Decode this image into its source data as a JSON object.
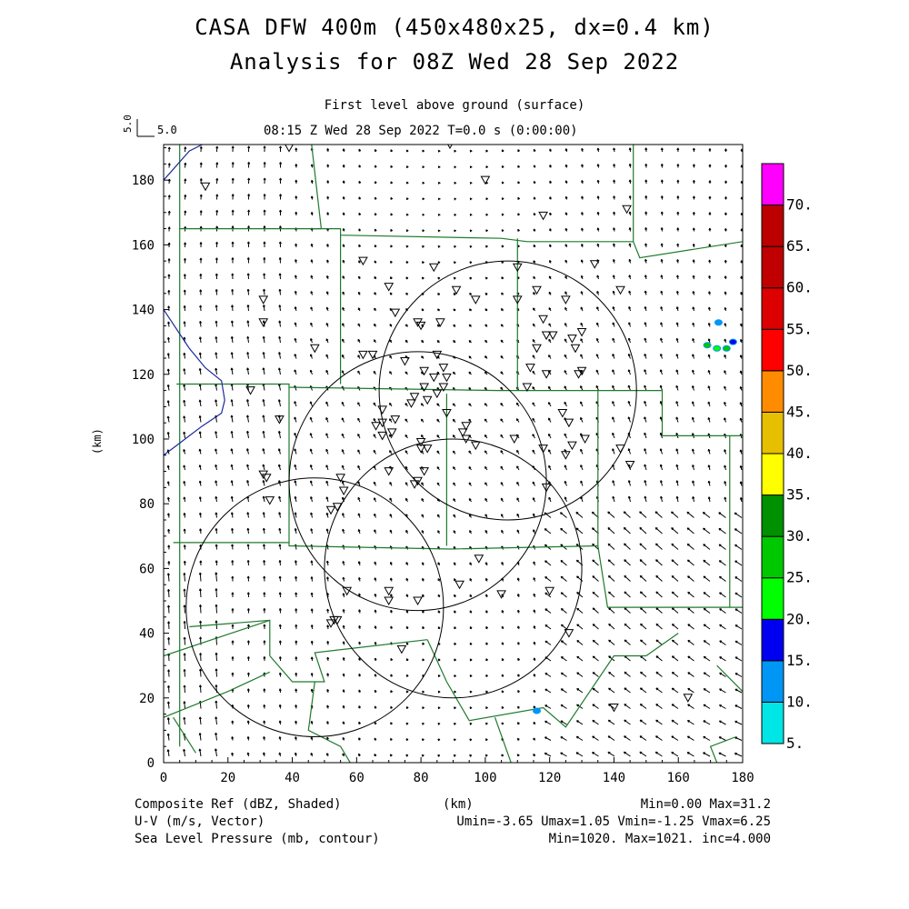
{
  "chart_data": {
    "type": "heatmap",
    "title": "CASA DFW 400m (450x480x25, dx=0.4 km)",
    "title2": "Analysis for 08Z Wed 28 Sep 2022",
    "subtitle": "First level above ground (surface)",
    "time_label": "08:15 Z Wed 28 Sep 2022    T=0.0 s (0:00:00)",
    "vector_scale": "5.0",
    "xlabel": "(km)",
    "ylabel": "(km)",
    "xlim": [
      0,
      180
    ],
    "ylim": [
      0,
      191
    ],
    "xticks": [
      "0",
      "20",
      "40",
      "60",
      "80",
      "100",
      "120",
      "140",
      "160",
      "180"
    ],
    "yticks": [
      "0",
      "20",
      "40",
      "60",
      "80",
      "100",
      "120",
      "140",
      "160",
      "180"
    ],
    "colorbar": {
      "labels": [
        "5.",
        "10.",
        "15.",
        "20.",
        "25.",
        "30.",
        "35.",
        "40.",
        "45.",
        "50.",
        "55.",
        "60.",
        "65.",
        "70."
      ],
      "colors": [
        "#00e5e5",
        "#0096f5",
        "#0000f0",
        "#00ff00",
        "#00c800",
        "#009000",
        "#ffff00",
        "#e6bf00",
        "#ff8c00",
        "#ff0000",
        "#dc0000",
        "#c00000",
        "#bc0000",
        "#ff00ff"
      ]
    },
    "radar_circles": [
      {
        "cx": 107,
        "cy": 115,
        "r": 40
      },
      {
        "cx": 79,
        "cy": 87,
        "r": 40
      },
      {
        "cx": 90,
        "cy": 60,
        "r": 40
      },
      {
        "cx": 47,
        "cy": 48,
        "r": 40
      }
    ],
    "echoes": [
      {
        "x": 116,
        "y": 16,
        "dbz": 12
      },
      {
        "x": 172.5,
        "y": 136,
        "dbz": 12
      },
      {
        "x": 169,
        "y": 129,
        "dbz": 25
      },
      {
        "x": 172,
        "y": 128,
        "dbz": 22
      },
      {
        "x": 175,
        "y": 128,
        "dbz": 25
      },
      {
        "x": 177,
        "y": 130,
        "dbz": 15
      }
    ],
    "stations": [
      [
        13,
        178
      ],
      [
        39,
        190
      ],
      [
        89,
        191
      ],
      [
        100,
        180
      ],
      [
        118,
        169
      ],
      [
        144,
        171
      ],
      [
        31,
        143
      ],
      [
        31,
        136
      ],
      [
        47,
        128
      ],
      [
        62,
        155
      ],
      [
        70,
        147
      ],
      [
        72,
        139
      ],
      [
        84,
        153
      ],
      [
        79,
        136
      ],
      [
        80,
        135
      ],
      [
        86,
        136
      ],
      [
        91,
        146
      ],
      [
        97,
        143
      ],
      [
        110,
        153
      ],
      [
        110,
        143
      ],
      [
        116,
        146
      ],
      [
        118,
        137
      ],
      [
        119,
        132
      ],
      [
        121,
        132
      ],
      [
        125,
        143
      ],
      [
        116,
        128
      ],
      [
        114,
        122
      ],
      [
        119,
        120
      ],
      [
        127,
        131
      ],
      [
        128,
        128
      ],
      [
        130,
        133
      ],
      [
        130,
        121
      ],
      [
        129,
        120
      ],
      [
        134,
        154
      ],
      [
        142,
        146
      ],
      [
        65,
        126
      ],
      [
        75,
        124
      ],
      [
        81,
        121
      ],
      [
        85,
        126
      ],
      [
        84,
        119
      ],
      [
        87,
        122
      ],
      [
        88,
        119
      ],
      [
        78,
        113
      ],
      [
        82,
        112
      ],
      [
        85,
        114
      ],
      [
        87,
        116
      ],
      [
        81,
        116
      ],
      [
        62,
        126
      ],
      [
        27,
        115
      ],
      [
        36,
        106
      ],
      [
        68,
        109
      ],
      [
        68,
        105
      ],
      [
        66,
        104
      ],
      [
        71,
        102
      ],
      [
        72,
        106
      ],
      [
        68,
        101
      ],
      [
        77,
        111
      ],
      [
        94,
        104
      ],
      [
        93,
        102
      ],
      [
        94,
        100
      ],
      [
        80,
        99
      ],
      [
        82,
        97
      ],
      [
        80,
        97
      ],
      [
        109,
        100
      ],
      [
        113,
        116
      ],
      [
        118,
        97
      ],
      [
        119,
        85
      ],
      [
        124,
        108
      ],
      [
        126,
        105
      ],
      [
        125,
        95
      ],
      [
        127,
        98
      ],
      [
        131,
        100
      ],
      [
        142,
        97
      ],
      [
        145,
        92
      ],
      [
        31,
        89
      ],
      [
        32,
        88
      ],
      [
        33,
        81
      ],
      [
        55,
        88
      ],
      [
        56,
        84
      ],
      [
        52,
        78
      ],
      [
        54,
        79
      ],
      [
        70,
        90
      ],
      [
        79,
        87
      ],
      [
        81,
        90
      ],
      [
        78,
        86
      ],
      [
        88,
        108
      ],
      [
        97,
        98
      ],
      [
        57,
        53
      ],
      [
        70,
        53
      ],
      [
        70,
        50
      ],
      [
        79,
        50
      ],
      [
        92,
        55
      ],
      [
        98,
        63
      ],
      [
        105,
        52
      ],
      [
        120,
        53
      ],
      [
        126,
        40
      ],
      [
        52,
        43
      ],
      [
        53,
        44
      ],
      [
        54,
        44
      ],
      [
        74,
        35
      ],
      [
        140,
        17
      ],
      [
        163,
        20
      ]
    ],
    "county_lines": [
      [
        [
          5,
          191
        ],
        [
          5,
          5
        ]
      ],
      [
        [
          5,
          165
        ],
        [
          49,
          165
        ]
      ],
      [
        [
          49,
          165
        ],
        [
          46,
          191
        ]
      ],
      [
        [
          46,
          165
        ],
        [
          55,
          165
        ],
        [
          55,
          163
        ],
        [
          105,
          162
        ],
        [
          113,
          161
        ],
        [
          146,
          161
        ]
      ],
      [
        [
          146,
          161
        ],
        [
          148,
          156
        ],
        [
          180,
          161
        ]
      ],
      [
        [
          146,
          191
        ],
        [
          146,
          161
        ]
      ],
      [
        [
          55,
          163
        ],
        [
          55,
          117
        ]
      ],
      [
        [
          4,
          117
        ],
        [
          39,
          117
        ],
        [
          39,
          116
        ],
        [
          104,
          115
        ],
        [
          155,
          115
        ]
      ],
      [
        [
          155,
          115
        ],
        [
          155,
          101
        ],
        [
          180,
          101
        ]
      ],
      [
        [
          110,
          162
        ],
        [
          110,
          115
        ]
      ],
      [
        [
          39,
          116
        ],
        [
          39,
          68
        ]
      ],
      [
        [
          3,
          68
        ],
        [
          39,
          68
        ],
        [
          39,
          67
        ],
        [
          89,
          66
        ],
        [
          135,
          67
        ]
      ],
      [
        [
          88,
          114
        ],
        [
          88,
          67
        ]
      ],
      [
        [
          135,
          115
        ],
        [
          135,
          67
        ]
      ],
      [
        [
          135,
          67
        ],
        [
          138,
          48
        ],
        [
          180,
          48
        ]
      ],
      [
        [
          176,
          101
        ],
        [
          176,
          48
        ]
      ],
      [
        [
          0,
          33
        ],
        [
          33,
          44
        ]
      ],
      [
        [
          8,
          42
        ],
        [
          33,
          44
        ],
        [
          33,
          33
        ]
      ],
      [
        [
          33,
          33
        ],
        [
          40,
          25
        ],
        [
          50,
          25
        ],
        [
          47,
          34
        ],
        [
          82,
          38
        ]
      ],
      [
        [
          82,
          38
        ],
        [
          88,
          25
        ],
        [
          95,
          13
        ],
        [
          118,
          17
        ],
        [
          125,
          11
        ],
        [
          140,
          33
        ],
        [
          150,
          33
        ],
        [
          160,
          40
        ]
      ],
      [
        [
          0,
          14
        ],
        [
          20,
          22
        ],
        [
          33,
          28
        ]
      ],
      [
        [
          3,
          14
        ],
        [
          10,
          3
        ]
      ],
      [
        [
          47,
          25
        ],
        [
          45,
          10
        ],
        [
          55,
          5
        ],
        [
          58,
          0
        ]
      ],
      [
        [
          103,
          14
        ],
        [
          108,
          0
        ]
      ],
      [
        [
          172,
          30
        ],
        [
          180,
          22
        ]
      ],
      [
        [
          178,
          8
        ],
        [
          170,
          5
        ],
        [
          172,
          0
        ]
      ]
    ],
    "coast_lines": [
      [
        [
          0,
          180
        ],
        [
          8,
          189
        ],
        [
          12,
          191
        ]
      ],
      [
        [
          0,
          140
        ],
        [
          8,
          128
        ],
        [
          13,
          122
        ],
        [
          18,
          118
        ],
        [
          19,
          112
        ],
        [
          18,
          108
        ],
        [
          15,
          106
        ],
        [
          12,
          104
        ],
        [
          8,
          101
        ],
        [
          4,
          98
        ],
        [
          0,
          95
        ]
      ]
    ]
  },
  "footer": {
    "left1": "Composite Ref (dBZ, Shaded)",
    "left2": "U-V (m/s, Vector)",
    "left3": "Sea Level Pressure (mb, contour)",
    "center1": "(km)",
    "right1": "Min=0.00 Max=31.2",
    "right2": "Umin=-3.65 Umax=1.05 Vmin=-1.25 Vmax=6.25",
    "right3": "Min=1020. Max=1021. inc=4.000"
  }
}
